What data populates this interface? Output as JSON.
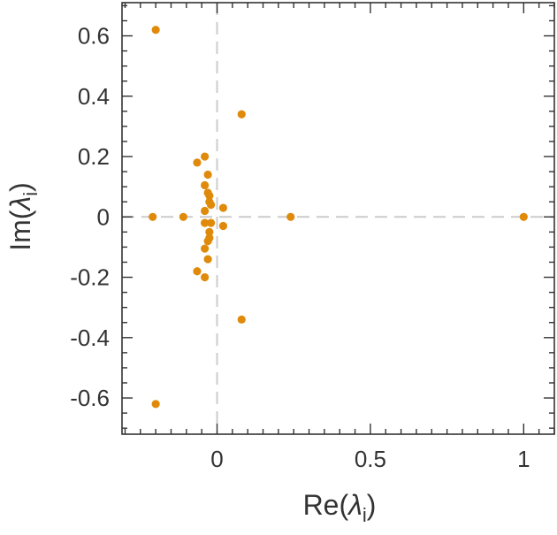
{
  "chart_data": {
    "type": "scatter",
    "title": "",
    "xlabel": {
      "main": "Re(",
      "symbol": "λ",
      "sub": "i",
      "close": ")"
    },
    "ylabel": {
      "main": "Im(",
      "symbol": "λ",
      "sub": "i",
      "close": ")"
    },
    "xlim": [
      -0.31,
      1.1
    ],
    "ylim": [
      -0.72,
      0.71
    ],
    "x_ticks": [
      {
        "value": 0,
        "label": "0"
      },
      {
        "value": 0.5,
        "label": "0.5"
      },
      {
        "value": 1,
        "label": "1"
      }
    ],
    "y_ticks": [
      {
        "value": 0.6,
        "label": "0.6"
      },
      {
        "value": 0.4,
        "label": "0.4"
      },
      {
        "value": 0.2,
        "label": "0.2"
      },
      {
        "value": 0,
        "label": "0"
      },
      {
        "value": -0.2,
        "label": "-0.2"
      },
      {
        "value": -0.4,
        "label": "-0.4"
      },
      {
        "value": -0.6,
        "label": "-0.6"
      }
    ],
    "reference_lines": {
      "x": 0,
      "y": 0,
      "style": "dashed"
    },
    "colors": {
      "points": "#e08a0b",
      "frame": "#333333",
      "reference": "#cccccc"
    },
    "series": [
      {
        "points": [
          {
            "x": 1.0,
            "y": 0.0
          },
          {
            "x": 0.24,
            "y": 0.0
          },
          {
            "x": -0.21,
            "y": 0.0
          },
          {
            "x": -0.11,
            "y": 0.0
          },
          {
            "x": -0.2,
            "y": 0.62
          },
          {
            "x": -0.2,
            "y": -0.62
          },
          {
            "x": 0.08,
            "y": 0.34
          },
          {
            "x": 0.08,
            "y": -0.34
          },
          {
            "x": -0.04,
            "y": 0.2
          },
          {
            "x": -0.04,
            "y": -0.2
          },
          {
            "x": -0.065,
            "y": 0.18
          },
          {
            "x": -0.065,
            "y": -0.18
          },
          {
            "x": -0.03,
            "y": 0.14
          },
          {
            "x": -0.03,
            "y": -0.14
          },
          {
            "x": -0.04,
            "y": 0.105
          },
          {
            "x": -0.04,
            "y": -0.105
          },
          {
            "x": -0.03,
            "y": 0.08
          },
          {
            "x": -0.03,
            "y": -0.08
          },
          {
            "x": -0.025,
            "y": 0.07
          },
          {
            "x": -0.025,
            "y": -0.07
          },
          {
            "x": -0.025,
            "y": 0.05
          },
          {
            "x": -0.025,
            "y": -0.05
          },
          {
            "x": -0.02,
            "y": 0.04
          },
          {
            "x": -0.02,
            "y": -0.02
          },
          {
            "x": 0.02,
            "y": 0.03
          },
          {
            "x": 0.02,
            "y": -0.03
          },
          {
            "x": -0.04,
            "y": 0.02
          },
          {
            "x": -0.04,
            "y": -0.02
          }
        ]
      }
    ]
  }
}
